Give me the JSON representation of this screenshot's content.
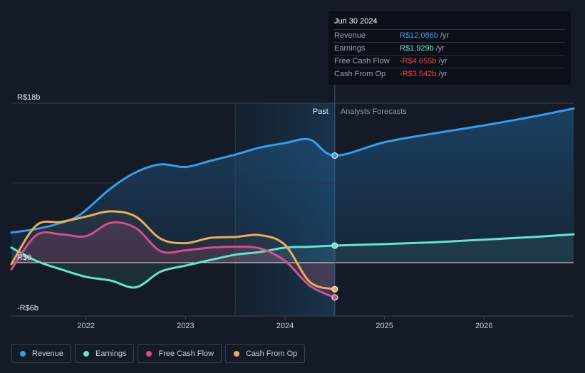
{
  "tooltip": {
    "date": "Jun 30 2024",
    "rows": [
      {
        "label": "Revenue",
        "value": "R$12.086b",
        "unit": "/yr",
        "color": "#3b9be8"
      },
      {
        "label": "Earnings",
        "value": "R$1.929b",
        "unit": "/yr",
        "color": "#67e2cf"
      },
      {
        "label": "Free Cash Flow",
        "value": "-R$4.655b",
        "unit": "/yr",
        "color": "#f0424a"
      },
      {
        "label": "Cash From Op",
        "value": "-R$3.542b",
        "unit": "/yr",
        "color": "#f0424a"
      }
    ]
  },
  "legend": [
    {
      "label": "Revenue",
      "color": "#3b9be8"
    },
    {
      "label": "Earnings",
      "color": "#67e2cf"
    },
    {
      "label": "Free Cash Flow",
      "color": "#d1508f"
    },
    {
      "label": "Cash From Op",
      "color": "#e8ad5e"
    }
  ],
  "chart_data": {
    "type": "line",
    "y_tick_labels": [
      "R$18b",
      "R$0",
      "-R$6b"
    ],
    "ylim": [
      -6,
      18
    ],
    "x_tick_labels": [
      "2022",
      "2023",
      "2024",
      "2025",
      "2026"
    ],
    "x_ticks": [
      2022.0,
      2023.0,
      2024.0,
      2025.0,
      2026.0
    ],
    "xlim": [
      2021.25,
      2026.9
    ],
    "past_label": "Past",
    "forecast_label": "Analysts Forecasts",
    "past_region_start": 2023.5,
    "divider": 2024.5,
    "series": [
      {
        "name": "Revenue",
        "color": "#3b9be8",
        "points": [
          [
            2021.25,
            3.4
          ],
          [
            2021.5,
            3.8
          ],
          [
            2021.75,
            4.5
          ],
          [
            2021.95,
            5.5
          ],
          [
            2022.25,
            8.4
          ],
          [
            2022.5,
            10.2
          ],
          [
            2022.75,
            11.1
          ],
          [
            2023.0,
            10.8
          ],
          [
            2023.25,
            11.5
          ],
          [
            2023.5,
            12.2
          ],
          [
            2023.75,
            13.0
          ],
          [
            2024.0,
            13.5
          ],
          [
            2024.25,
            13.9
          ],
          [
            2024.5,
            12.086
          ],
          [
            2025.0,
            13.6
          ],
          [
            2025.5,
            14.6
          ],
          [
            2026.0,
            15.5
          ],
          [
            2026.5,
            16.5
          ],
          [
            2026.9,
            17.4
          ]
        ]
      },
      {
        "name": "Earnings",
        "color": "#67e2cf",
        "points": [
          [
            2021.25,
            1.7
          ],
          [
            2021.5,
            0.2
          ],
          [
            2021.75,
            -0.9
          ],
          [
            2022.0,
            -1.9
          ],
          [
            2022.25,
            -2.4
          ],
          [
            2022.5,
            -3.3
          ],
          [
            2022.75,
            -1.2
          ],
          [
            2023.0,
            -0.4
          ],
          [
            2023.25,
            0.3
          ],
          [
            2023.5,
            0.9
          ],
          [
            2023.75,
            1.2
          ],
          [
            2024.0,
            1.7
          ],
          [
            2024.25,
            1.8
          ],
          [
            2024.5,
            1.929
          ],
          [
            2025.0,
            2.1
          ],
          [
            2025.5,
            2.3
          ],
          [
            2026.0,
            2.6
          ],
          [
            2026.5,
            2.9
          ],
          [
            2026.9,
            3.2
          ]
        ]
      },
      {
        "name": "Free Cash Flow",
        "color": "#d1508f",
        "points": [
          [
            2021.25,
            -0.9
          ],
          [
            2021.5,
            3.1
          ],
          [
            2021.75,
            3.2
          ],
          [
            2022.0,
            3.0
          ],
          [
            2022.25,
            4.5
          ],
          [
            2022.5,
            3.9
          ],
          [
            2022.75,
            1.3
          ],
          [
            2023.0,
            1.4
          ],
          [
            2023.25,
            1.7
          ],
          [
            2023.5,
            1.8
          ],
          [
            2023.75,
            1.6
          ],
          [
            2024.0,
            0.2
          ],
          [
            2024.25,
            -3.1
          ],
          [
            2024.5,
            -4.655
          ]
        ]
      },
      {
        "name": "Cash From Op",
        "color": "#e8ad5e",
        "points": [
          [
            2021.25,
            -0.2
          ],
          [
            2021.5,
            4.2
          ],
          [
            2021.75,
            4.6
          ],
          [
            2022.0,
            5.2
          ],
          [
            2022.25,
            5.8
          ],
          [
            2022.5,
            5.2
          ],
          [
            2022.75,
            2.7
          ],
          [
            2023.0,
            2.2
          ],
          [
            2023.25,
            2.8
          ],
          [
            2023.5,
            2.9
          ],
          [
            2023.75,
            3.1
          ],
          [
            2024.0,
            2.0
          ],
          [
            2024.25,
            -2.6
          ],
          [
            2024.5,
            -3.542
          ]
        ]
      }
    ]
  }
}
